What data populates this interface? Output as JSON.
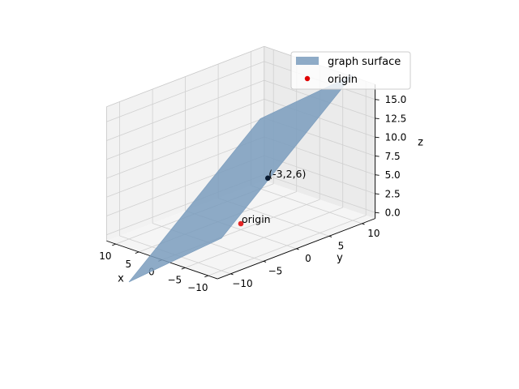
{
  "chart_data": {
    "type": "surface3d",
    "title": "",
    "xlabel": "x",
    "ylabel": "y",
    "zlabel": "z",
    "xlim": [
      -12,
      12
    ],
    "ylim": [
      -12,
      12
    ],
    "zlim": [
      -0.8,
      17
    ],
    "x_ticks": [
      "10",
      "5",
      "0",
      "−5",
      "−10"
    ],
    "x_tick_values": [
      10,
      5,
      0,
      -5,
      -10
    ],
    "y_ticks": [
      "−10",
      "−5",
      "0",
      "5",
      "10"
    ],
    "y_tick_values": [
      -10,
      -5,
      0,
      5,
      10
    ],
    "z_ticks": [
      "0.0",
      "2.5",
      "5.0",
      "7.5",
      "10.0",
      "12.5",
      "15.0"
    ],
    "z_tick_values": [
      0,
      2.5,
      5,
      7.5,
      10,
      12.5,
      15
    ],
    "grid": true,
    "legend_position": "top-right",
    "surface": {
      "name": "graph surface",
      "color": "#7a9cbd",
      "z_formula": "6 - 0.5*x + 0.75*y",
      "coef": {
        "c": 6,
        "x": -0.5,
        "y": 0.75
      },
      "x_range": [
        -10,
        10
      ],
      "y_range": [
        -10,
        10
      ]
    },
    "points": [
      {
        "name": "origin",
        "label": "origin",
        "x": 0,
        "y": 0,
        "z": 0,
        "color": "#e00000"
      },
      {
        "name": "point",
        "label": "(-3,2,6)",
        "x": -3,
        "y": 2,
        "z": 6,
        "color": "#0b1c33"
      }
    ],
    "legend": [
      {
        "label": "graph surface",
        "kind": "patch",
        "color": "#7a9cbd"
      },
      {
        "label": "origin",
        "kind": "marker",
        "color": "#e00000"
      }
    ]
  }
}
